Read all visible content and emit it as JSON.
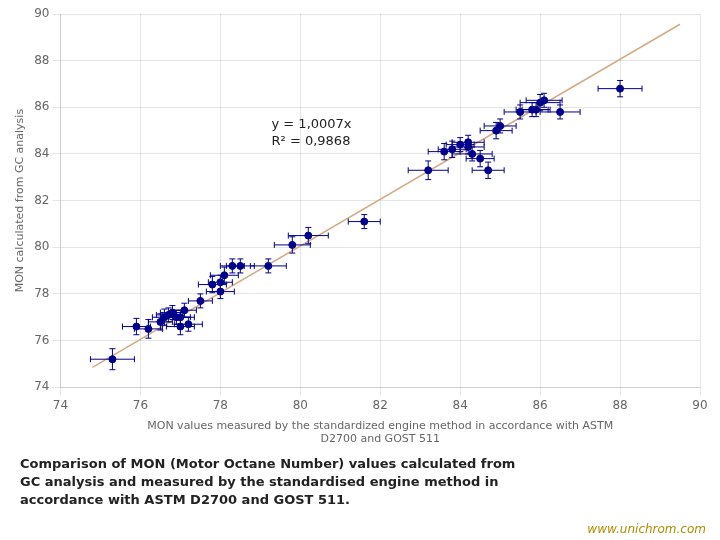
{
  "chart_data": {
    "type": "scatter",
    "xlabel": "MON values measured by the standardized engine method in accordance with ASTM\nD2700 and GOST 511",
    "ylabel": "MON calculated from GC analysis",
    "annotations": [
      "y = 1,0007x\nR² = 0,9868"
    ],
    "caption": [
      "Comparison of MON (Motor Octane Number) values calculated from",
      "GC analysis and measured by the standardised engine method in",
      "accordance with ASTM D2700 and GOST 511."
    ],
    "watermark": "www.unichrom.com",
    "xlim": [
      74,
      90
    ],
    "ylim": [
      74,
      90
    ],
    "xticks": [
      74,
      76,
      78,
      80,
      82,
      84,
      86,
      88,
      90
    ],
    "yticks": [
      74,
      76,
      78,
      80,
      82,
      84,
      86,
      88,
      90
    ],
    "grid": true,
    "series": [
      {
        "type": "line",
        "color": "#d4aa80",
        "x": [
          74.8,
          89.5
        ],
        "values": [
          74.85,
          89.56
        ]
      },
      {
        "type": "scatter",
        "color": "#00008B",
        "marker": "circle",
        "x": [
          75.3,
          75.9,
          76.2,
          76.5,
          76.6,
          76.7,
          76.8,
          76.9,
          77.0,
          77.1,
          77.0,
          77.2,
          77.5,
          77.8,
          78.0,
          78.0,
          78.1,
          78.3,
          78.5,
          79.2,
          79.8,
          80.2,
          81.6,
          83.2,
          83.6,
          83.8,
          84.0,
          84.2,
          84.2,
          84.3,
          84.5,
          84.7,
          84.9,
          85.0,
          85.5,
          85.8,
          86.0,
          86.1,
          85.9,
          86.5,
          88.0
        ],
        "values": [
          75.2,
          76.6,
          76.5,
          76.8,
          77.0,
          77.1,
          77.2,
          77.0,
          77.0,
          77.3,
          76.6,
          76.7,
          77.7,
          78.4,
          78.5,
          78.1,
          78.8,
          79.2,
          79.2,
          79.2,
          80.1,
          80.5,
          81.1,
          83.3,
          84.1,
          84.2,
          84.4,
          84.3,
          84.5,
          84.0,
          83.8,
          83.3,
          85.0,
          85.2,
          85.8,
          85.9,
          86.2,
          86.3,
          85.9,
          85.8,
          86.8
        ],
        "xerr": [
          0.55,
          0.35,
          0.35,
          0.3,
          0.3,
          0.3,
          0.3,
          0.35,
          0.35,
          0.3,
          0.35,
          0.35,
          0.3,
          0.35,
          0.3,
          0.35,
          0.35,
          0.3,
          0.35,
          0.45,
          0.45,
          0.5,
          0.4,
          0.5,
          0.4,
          0.35,
          0.35,
          0.4,
          0.4,
          0.5,
          0.35,
          0.4,
          0.4,
          0.4,
          0.4,
          0.4,
          0.5,
          0.45,
          0.35,
          0.5,
          0.55
        ],
        "yerr": [
          0.45,
          0.35,
          0.4,
          0.35,
          0.35,
          0.3,
          0.3,
          0.3,
          0.3,
          0.3,
          0.35,
          0.3,
          0.3,
          0.35,
          0.3,
          0.3,
          0.35,
          0.3,
          0.3,
          0.3,
          0.35,
          0.35,
          0.3,
          0.4,
          0.35,
          0.35,
          0.3,
          0.3,
          0.3,
          0.3,
          0.35,
          0.35,
          0.35,
          0.3,
          0.3,
          0.3,
          0.35,
          0.3,
          0.3,
          0.3,
          0.35
        ]
      }
    ]
  }
}
